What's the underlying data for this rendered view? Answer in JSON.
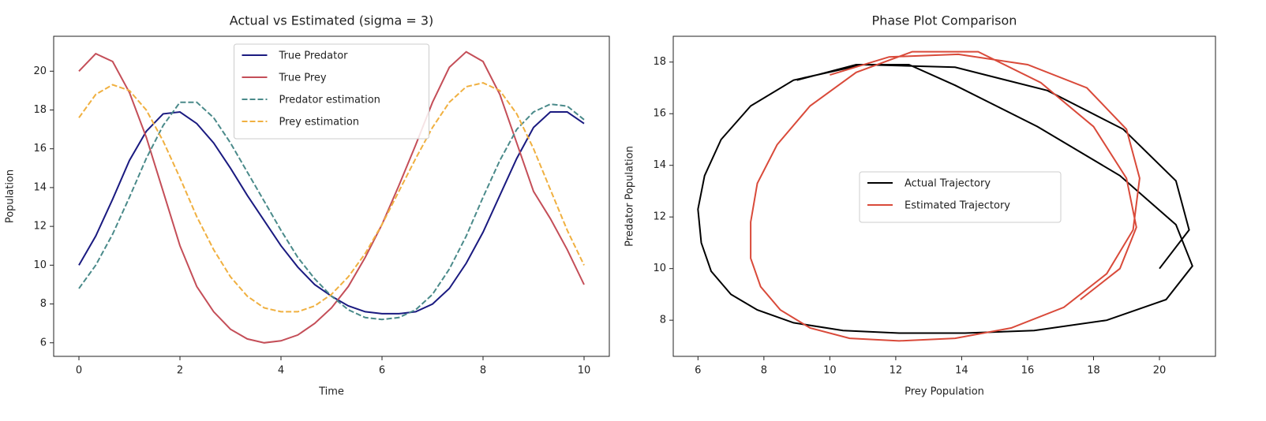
{
  "chart_data": [
    {
      "type": "line",
      "title": "Actual vs Estimated (sigma = 3)",
      "x_label": "Time",
      "y_label": "Population",
      "x": [
        0,
        0.333,
        0.667,
        1,
        1.333,
        1.667,
        2,
        2.333,
        2.667,
        3,
        3.333,
        3.667,
        4,
        4.333,
        4.667,
        5,
        5.333,
        5.667,
        6,
        6.333,
        6.667,
        7,
        7.333,
        7.667,
        8,
        8.333,
        8.667,
        9,
        9.333,
        9.667,
        10
      ],
      "xlim": [
        -0.5,
        10.5
      ],
      "xticks": [
        0,
        2,
        4,
        6,
        8,
        10
      ],
      "ylim": [
        5.3,
        21.8
      ],
      "yticks": [
        6,
        8,
        10,
        12,
        14,
        16,
        18,
        20
      ],
      "legend": "upper center",
      "series": [
        {
          "name": "True Predator",
          "color": "#1a1a80",
          "dash": false,
          "values": [
            10,
            11.5,
            13.4,
            15.4,
            16.9,
            17.8,
            17.9,
            17.3,
            16.3,
            15.0,
            13.6,
            12.3,
            11.0,
            9.9,
            9.0,
            8.4,
            7.9,
            7.6,
            7.5,
            7.5,
            7.6,
            8.0,
            8.8,
            10.1,
            11.7,
            13.6,
            15.5,
            17.1,
            17.9,
            17.9,
            17.3
          ]
        },
        {
          "name": "True Prey",
          "color": "#c44e58",
          "dash": false,
          "values": [
            20.0,
            20.9,
            20.5,
            18.9,
            16.6,
            13.8,
            11.0,
            8.9,
            7.6,
            6.7,
            6.2,
            6.0,
            6.1,
            6.4,
            7.0,
            7.8,
            8.9,
            10.4,
            12.1,
            14.1,
            16.2,
            18.4,
            20.2,
            21.0,
            20.5,
            18.8,
            16.3,
            13.8,
            12.4,
            10.8,
            9.0
          ]
        },
        {
          "name": "Predator estimation",
          "color": "#4a8a8a",
          "dash": true,
          "values": [
            8.8,
            10.0,
            11.6,
            13.5,
            15.5,
            17.2,
            18.4,
            18.4,
            17.6,
            16.3,
            14.8,
            13.3,
            11.8,
            10.4,
            9.3,
            8.4,
            7.7,
            7.3,
            7.2,
            7.3,
            7.7,
            8.5,
            9.8,
            11.5,
            13.5,
            15.4,
            17.0,
            17.9,
            18.3,
            18.2,
            17.5
          ]
        },
        {
          "name": "Prey estimation",
          "color": "#f0b040",
          "dash": true,
          "values": [
            17.6,
            18.8,
            19.3,
            19.0,
            18.0,
            16.4,
            14.5,
            12.5,
            10.8,
            9.4,
            8.4,
            7.8,
            7.6,
            7.6,
            7.9,
            8.5,
            9.4,
            10.6,
            12.1,
            13.8,
            15.5,
            17.1,
            18.4,
            19.2,
            19.4,
            19.0,
            17.8,
            16.0,
            13.9,
            11.8,
            10.0
          ]
        }
      ]
    },
    {
      "type": "line",
      "title": "Phase Plot Comparison",
      "x_label": "Prey Population",
      "y_label": "Predator Population",
      "xlim": [
        5.25,
        21.7
      ],
      "xticks": [
        6,
        8,
        10,
        12,
        14,
        16,
        18,
        20
      ],
      "ylim": [
        6.6,
        19.0
      ],
      "yticks": [
        8,
        10,
        12,
        14,
        16,
        18
      ],
      "legend": "center",
      "series": [
        {
          "name": "Actual Trajectory",
          "color": "#000000",
          "dash": false,
          "x": [
            20.0,
            20.9,
            20.5,
            18.9,
            16.6,
            13.8,
            11.0,
            8.9,
            7.6,
            6.7,
            6.2,
            6.0,
            6.1,
            6.4,
            7.0,
            7.8,
            8.9,
            10.4,
            12.1,
            14.1,
            16.2,
            18.4,
            20.2,
            21.0,
            20.5,
            18.8,
            16.3,
            13.8,
            12.4,
            10.8,
            9.0
          ],
          "values": [
            10,
            11.5,
            13.4,
            15.4,
            16.9,
            17.8,
            17.9,
            17.3,
            16.3,
            15.0,
            13.6,
            12.3,
            11.0,
            9.9,
            9.0,
            8.4,
            7.9,
            7.6,
            7.5,
            7.5,
            7.6,
            8.0,
            8.8,
            10.1,
            11.7,
            13.6,
            15.5,
            17.1,
            17.9,
            17.9,
            17.3
          ]
        },
        {
          "name": "Estimated Trajectory",
          "color": "#d94a3a",
          "dash": false,
          "x": [
            17.6,
            18.8,
            19.3,
            19.0,
            18.0,
            16.4,
            14.5,
            12.5,
            10.8,
            9.4,
            8.4,
            7.8,
            7.6,
            7.6,
            7.9,
            8.5,
            9.4,
            10.6,
            12.1,
            13.8,
            15.5,
            17.1,
            18.4,
            19.2,
            19.4,
            19.0,
            17.8,
            16.0,
            13.9,
            11.8,
            10.0
          ],
          "values": [
            8.8,
            10.0,
            11.6,
            13.5,
            15.5,
            17.2,
            18.4,
            18.4,
            17.6,
            16.3,
            14.8,
            13.3,
            11.8,
            10.4,
            9.3,
            8.4,
            7.7,
            7.3,
            7.2,
            7.3,
            7.7,
            8.5,
            9.8,
            11.5,
            13.5,
            15.4,
            17.0,
            17.9,
            18.3,
            18.2,
            17.5
          ]
        }
      ]
    }
  ]
}
